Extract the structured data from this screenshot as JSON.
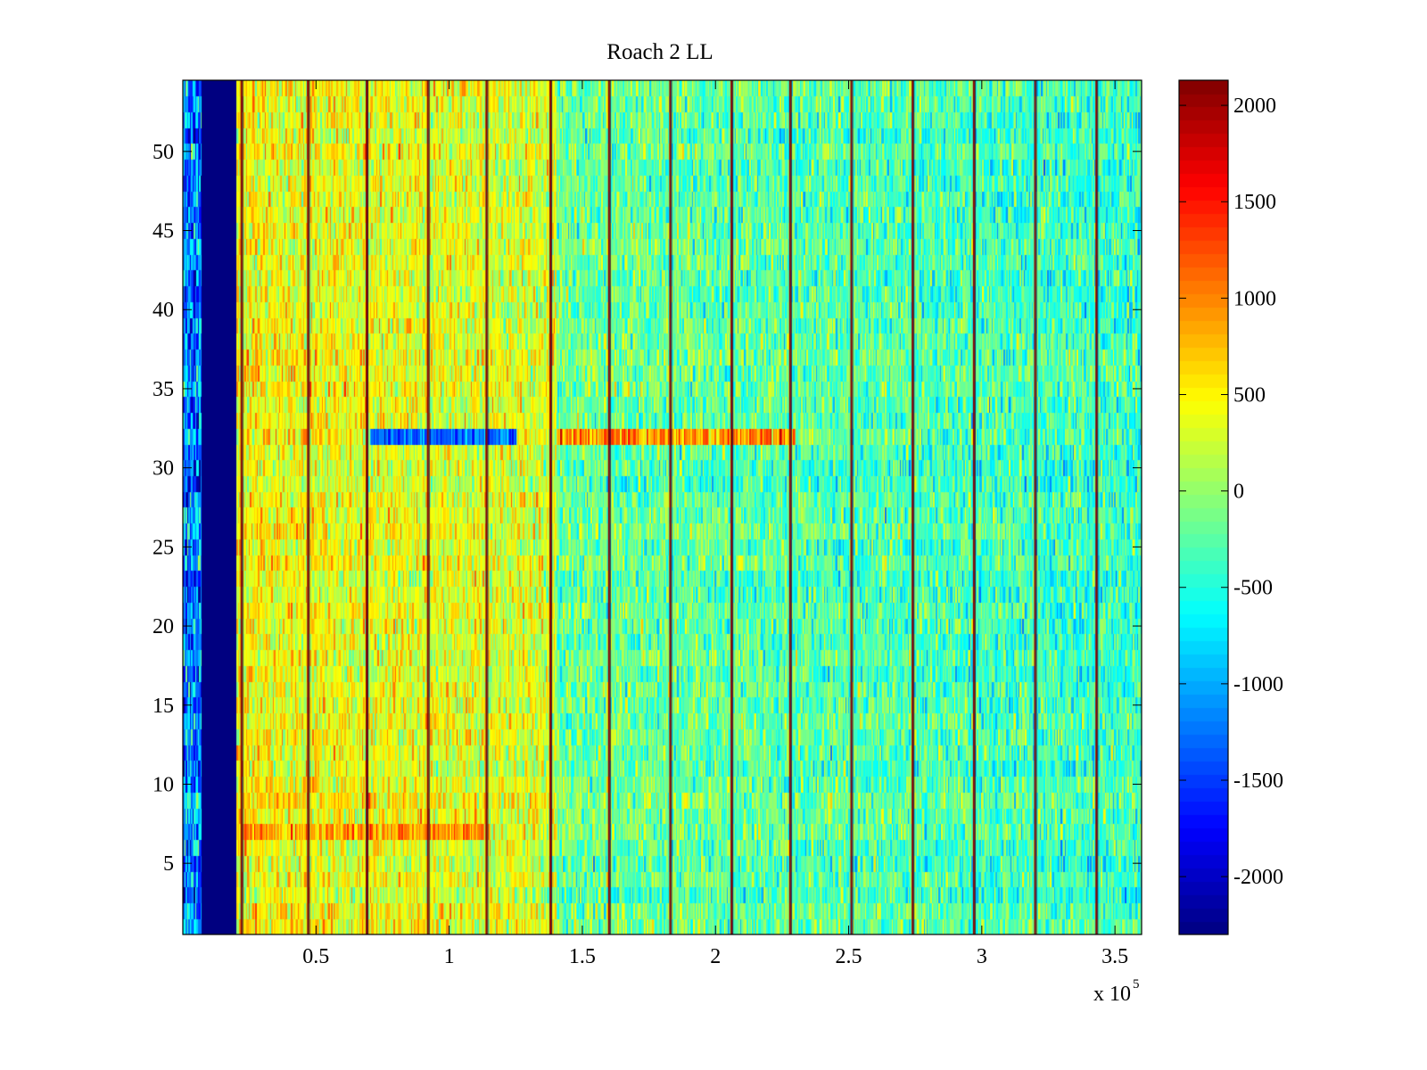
{
  "chart_data": {
    "type": "heatmap",
    "title": "Roach 2 LL",
    "xlabel": "",
    "ylabel": "",
    "x_multiplier": {
      "base": "x 10",
      "exponent": "5"
    },
    "xlim": [
      0,
      360000
    ],
    "ylim": [
      0.5,
      54.5
    ],
    "xticks": [
      50000,
      100000,
      150000,
      200000,
      250000,
      300000,
      350000
    ],
    "xtick_labels": [
      "0.5",
      "1",
      "1.5",
      "2",
      "2.5",
      "3",
      "3.5"
    ],
    "yticks": [
      5,
      10,
      15,
      20,
      25,
      30,
      35,
      40,
      45,
      50
    ],
    "ytick_labels": [
      "5",
      "10",
      "15",
      "20",
      "25",
      "30",
      "35",
      "40",
      "45",
      "50"
    ],
    "rows": 54,
    "colormap": "jet",
    "clim": [
      -2300,
      2130
    ],
    "colorbar_ticks": [
      2000,
      1500,
      1000,
      500,
      0,
      -500,
      -1000,
      -1500,
      -2000
    ],
    "colorbar_labels": [
      "2000",
      "1500",
      "1000",
      "500",
      "0",
      "-500",
      "-1000",
      "-1500",
      "-2000"
    ],
    "approx_features": {
      "saturated_low_band_x": [
        7000,
        20000
      ],
      "bright_vertical_lines_x": [
        22000,
        47000,
        69000,
        92000,
        114000,
        138000,
        160000,
        183000,
        206000,
        228000,
        251000,
        274000,
        297000,
        320000,
        343000
      ],
      "warm_region_x": [
        20000,
        140000
      ],
      "background_value": 0,
      "warm_value": 450,
      "cool_value": -300,
      "row_32_anomaly": {
        "row": 32,
        "low_x": [
          70000,
          125000
        ],
        "high_x": [
          140000,
          230000
        ]
      },
      "row_7_anomaly": {
        "row": 7,
        "high_x": [
          20000,
          115000
        ]
      }
    }
  }
}
